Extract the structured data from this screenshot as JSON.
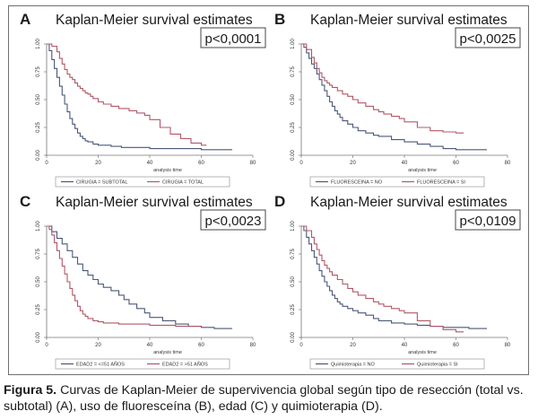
{
  "caption": {
    "label": "Figura 5.",
    "text": " Curvas de Kaplan-Meier de supervivencia global según tipo de resección (total vs. subtotal) (A), uso de fluoresceína (B), edad (C) y quimioterapia (D)."
  },
  "colors": {
    "series1": "#4a5878",
    "series2": "#b05868",
    "text": "#1a1a1a",
    "box": "#444444"
  },
  "axis_title": "analysis time",
  "chart_data": [
    {
      "type": "line",
      "panel_letter": "A",
      "title": "Kaplan-Meier survival estimates",
      "annotation": "p<0,0001",
      "xlabel": "analysis time",
      "ylabel": "",
      "xlim": [
        0,
        80
      ],
      "ylim": [
        0,
        1
      ],
      "xticks": [
        "0",
        "20",
        "40",
        "60",
        "80"
      ],
      "yticks": [
        "0.00",
        "0.25",
        "0.50",
        "0.75",
        "1.00"
      ],
      "legend_position": "bottom",
      "series": [
        {
          "name": "CIRUGIA = SUBTOTAL",
          "color": "#4a5878",
          "x": [
            0,
            1,
            2,
            3,
            4,
            5,
            6,
            7,
            8,
            9,
            10,
            11,
            12,
            13,
            14,
            15,
            16,
            18,
            20,
            25,
            29,
            35,
            40,
            50,
            60,
            72
          ],
          "y": [
            1.0,
            0.94,
            0.86,
            0.78,
            0.7,
            0.62,
            0.54,
            0.46,
            0.39,
            0.33,
            0.28,
            0.24,
            0.2,
            0.17,
            0.15,
            0.13,
            0.12,
            0.1,
            0.09,
            0.08,
            0.07,
            0.07,
            0.06,
            0.06,
            0.05,
            0.05
          ]
        },
        {
          "name": "CIRUGIA = TOTAL",
          "color": "#b05868",
          "x": [
            0,
            2,
            4,
            5,
            6,
            7,
            8,
            9,
            10,
            11,
            12,
            13,
            14,
            15,
            16,
            17,
            18,
            20,
            22,
            25,
            28,
            32,
            35,
            38,
            40,
            44,
            48,
            52,
            56,
            60,
            62
          ],
          "y": [
            1.0,
            0.98,
            0.93,
            0.87,
            0.82,
            0.77,
            0.73,
            0.7,
            0.68,
            0.65,
            0.62,
            0.6,
            0.58,
            0.56,
            0.55,
            0.53,
            0.51,
            0.48,
            0.46,
            0.44,
            0.42,
            0.4,
            0.38,
            0.36,
            0.32,
            0.25,
            0.19,
            0.15,
            0.11,
            0.09,
            0.09
          ]
        }
      ]
    },
    {
      "type": "line",
      "panel_letter": "B",
      "title": "Kaplan-Meier survival estimates",
      "annotation": "p<0,0025",
      "xlabel": "analysis time",
      "ylabel": "",
      "xlim": [
        0,
        80
      ],
      "ylim": [
        0,
        1
      ],
      "xticks": [
        "0",
        "20",
        "40",
        "60",
        "80"
      ],
      "yticks": [
        "0.00",
        "0.25",
        "0.50",
        "0.75",
        "1.00"
      ],
      "legend_position": "bottom",
      "series": [
        {
          "name": "FLUORESCEINA = NO",
          "color": "#4a5878",
          "x": [
            0,
            1,
            2,
            3,
            4,
            5,
            6,
            7,
            8,
            9,
            10,
            11,
            12,
            13,
            14,
            15,
            16,
            18,
            20,
            22,
            25,
            28,
            30,
            35,
            40,
            45,
            50,
            55,
            60,
            65,
            72
          ],
          "y": [
            1.0,
            0.97,
            0.92,
            0.87,
            0.82,
            0.78,
            0.73,
            0.68,
            0.63,
            0.58,
            0.53,
            0.48,
            0.44,
            0.4,
            0.37,
            0.34,
            0.31,
            0.28,
            0.25,
            0.22,
            0.2,
            0.18,
            0.17,
            0.14,
            0.12,
            0.1,
            0.08,
            0.06,
            0.05,
            0.05,
            0.05
          ]
        },
        {
          "name": "FLUORESCEINA = SI",
          "color": "#b05868",
          "x": [
            0,
            2,
            4,
            5,
            6,
            7,
            8,
            9,
            10,
            11,
            12,
            14,
            16,
            18,
            20,
            22,
            25,
            28,
            30,
            32,
            35,
            38,
            40,
            45,
            50,
            55,
            60,
            63
          ],
          "y": [
            1.0,
            0.95,
            0.88,
            0.83,
            0.78,
            0.74,
            0.7,
            0.67,
            0.65,
            0.63,
            0.61,
            0.58,
            0.55,
            0.53,
            0.5,
            0.47,
            0.44,
            0.41,
            0.39,
            0.37,
            0.35,
            0.33,
            0.3,
            0.25,
            0.22,
            0.21,
            0.2,
            0.2
          ]
        }
      ]
    },
    {
      "type": "line",
      "panel_letter": "C",
      "title": "Kaplan-Meier survival estimates",
      "annotation": "p<0,0023",
      "xlabel": "analysis time",
      "ylabel": "",
      "xlim": [
        0,
        80
      ],
      "ylim": [
        0,
        1
      ],
      "xticks": [
        "0",
        "20",
        "40",
        "60",
        "80"
      ],
      "yticks": [
        "0.00",
        "0.25",
        "0.50",
        "0.75",
        "1.00"
      ],
      "legend_position": "bottom",
      "series": [
        {
          "name": "EDAD2 = <=51 AÑOS",
          "color": "#4a5878",
          "x": [
            0,
            2,
            4,
            6,
            8,
            10,
            12,
            14,
            16,
            18,
            20,
            22,
            25,
            28,
            30,
            32,
            35,
            38,
            40,
            45,
            50,
            55,
            60,
            65,
            72
          ],
          "y": [
            1.0,
            0.95,
            0.89,
            0.84,
            0.78,
            0.72,
            0.66,
            0.6,
            0.56,
            0.52,
            0.48,
            0.45,
            0.42,
            0.38,
            0.34,
            0.3,
            0.26,
            0.22,
            0.18,
            0.15,
            0.12,
            0.1,
            0.09,
            0.08,
            0.08
          ]
        },
        {
          "name": "EDAD2 = >51 AÑOS",
          "color": "#b05868",
          "x": [
            0,
            1,
            2,
            3,
            4,
            5,
            6,
            7,
            8,
            9,
            10,
            11,
            12,
            13,
            14,
            15,
            16,
            18,
            20,
            22,
            25,
            28,
            30,
            35,
            40,
            45,
            50,
            55,
            60
          ],
          "y": [
            1.0,
            0.97,
            0.92,
            0.85,
            0.78,
            0.71,
            0.64,
            0.57,
            0.5,
            0.44,
            0.38,
            0.33,
            0.28,
            0.24,
            0.21,
            0.19,
            0.17,
            0.15,
            0.14,
            0.13,
            0.13,
            0.12,
            0.12,
            0.12,
            0.11,
            0.11,
            0.1,
            0.1,
            0.1
          ]
        }
      ]
    },
    {
      "type": "line",
      "panel_letter": "D",
      "title": "Kaplan-Meier survival estimates",
      "annotation": "p<0,0109",
      "xlabel": "analysis time",
      "ylabel": "",
      "xlim": [
        0,
        80
      ],
      "ylim": [
        0,
        1
      ],
      "xticks": [
        "0",
        "20",
        "40",
        "60",
        "80"
      ],
      "yticks": [
        "0.00",
        "0.25",
        "0.50",
        "0.75",
        "1.00"
      ],
      "legend_position": "bottom",
      "series": [
        {
          "name": "Quimioterapia = NO",
          "color": "#4a5878",
          "x": [
            0,
            1,
            2,
            3,
            4,
            5,
            6,
            7,
            8,
            9,
            10,
            11,
            12,
            13,
            14,
            15,
            16,
            18,
            20,
            22,
            25,
            28,
            30,
            35,
            40,
            45,
            50,
            55,
            60,
            65,
            72
          ],
          "y": [
            1.0,
            0.96,
            0.9,
            0.84,
            0.78,
            0.72,
            0.66,
            0.6,
            0.55,
            0.5,
            0.46,
            0.42,
            0.38,
            0.35,
            0.32,
            0.3,
            0.28,
            0.26,
            0.24,
            0.22,
            0.2,
            0.17,
            0.15,
            0.13,
            0.12,
            0.11,
            0.1,
            0.09,
            0.09,
            0.08,
            0.08
          ]
        },
        {
          "name": "Quimioterapia = SI",
          "color": "#b05868",
          "x": [
            0,
            2,
            4,
            5,
            6,
            7,
            8,
            9,
            10,
            11,
            12,
            14,
            16,
            18,
            20,
            22,
            25,
            28,
            30,
            32,
            35,
            38,
            40,
            45,
            50,
            55,
            60,
            63
          ],
          "y": [
            1.0,
            0.96,
            0.9,
            0.84,
            0.79,
            0.74,
            0.69,
            0.65,
            0.62,
            0.59,
            0.56,
            0.52,
            0.48,
            0.44,
            0.41,
            0.38,
            0.35,
            0.32,
            0.3,
            0.28,
            0.26,
            0.24,
            0.22,
            0.15,
            0.1,
            0.07,
            0.05,
            0.05
          ]
        }
      ]
    }
  ]
}
